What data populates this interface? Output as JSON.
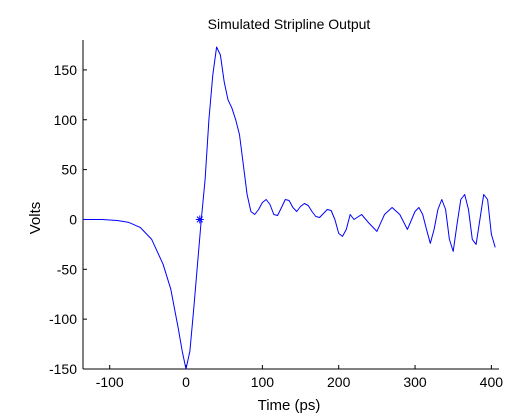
{
  "chart_data": {
    "type": "line",
    "title": "Simulated Stripline Output",
    "xlabel": "Time (ps)",
    "ylabel": "Volts",
    "xlim": [
      -135,
      410
    ],
    "ylim": [
      -150,
      180
    ],
    "xticks": [
      -100,
      0,
      100,
      200,
      300,
      400
    ],
    "yticks": [
      -150,
      -100,
      -50,
      0,
      50,
      100,
      150
    ],
    "grid": false,
    "line_color": "#0000ff",
    "series": [
      {
        "x": [
          -135,
          -110,
          -90,
          -75,
          -60,
          -45,
          -30,
          -20,
          -10,
          -5,
          0,
          5,
          10,
          15,
          20,
          25,
          30,
          35,
          40,
          45,
          50,
          55,
          60,
          65,
          70,
          75,
          80,
          85,
          90,
          95,
          100,
          105,
          110,
          115,
          120,
          125,
          130,
          135,
          140,
          145,
          150,
          155,
          160,
          165,
          170,
          175,
          180,
          185,
          190,
          195,
          200,
          205,
          210,
          215,
          220,
          230,
          240,
          250,
          260,
          270,
          280,
          290,
          300,
          305,
          310,
          315,
          320,
          325,
          330,
          335,
          340,
          345,
          350,
          355,
          360,
          365,
          370,
          375,
          380,
          385,
          390,
          395,
          400,
          405
        ],
        "y": [
          0,
          0,
          -1,
          -3,
          -8,
          -20,
          -45,
          -70,
          -110,
          -132,
          -150,
          -132,
          -90,
          -45,
          0,
          40,
          100,
          145,
          173,
          165,
          138,
          120,
          112,
          100,
          85,
          55,
          25,
          8,
          5,
          10,
          17,
          20,
          15,
          5,
          4,
          12,
          20,
          19,
          12,
          8,
          13,
          16,
          14,
          8,
          3,
          2,
          6,
          10,
          9,
          0,
          -14,
          -17,
          -10,
          5,
          0,
          5,
          -4,
          -12,
          5,
          12,
          5,
          -10,
          8,
          12,
          5,
          -10,
          -24,
          -10,
          10,
          20,
          10,
          -20,
          -32,
          -5,
          20,
          25,
          10,
          -20,
          -25,
          0,
          25,
          20,
          -15,
          -28
        ]
      }
    ],
    "markers": [
      {
        "x": 18,
        "y": 0,
        "symbol": "*"
      }
    ]
  }
}
